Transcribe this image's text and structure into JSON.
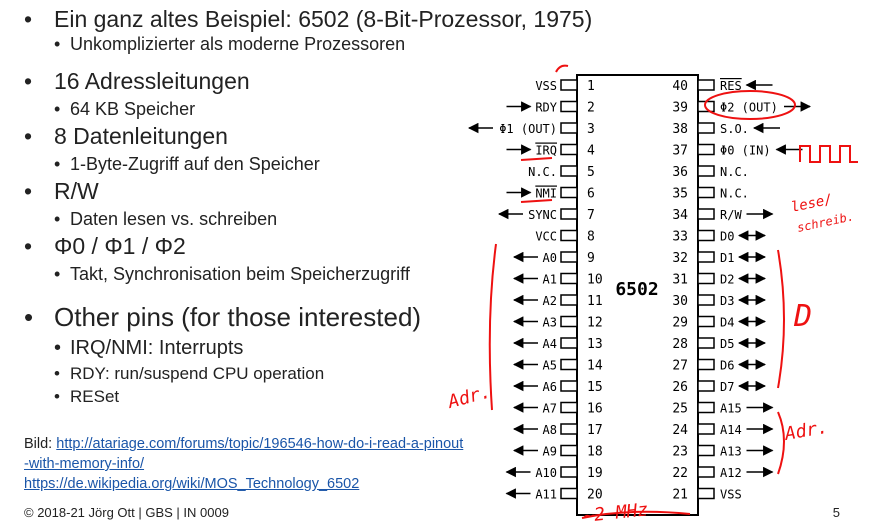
{
  "bullets": [
    {
      "text": "Ein ganz altes Beispiel: 6502 (8-Bit-Prozessor, 1975)",
      "subs": [
        "Unkomplizierter als moderne Prozessoren"
      ]
    },
    {
      "text": "16 Adressleitungen",
      "subs": [
        "64 KB Speicher"
      ]
    },
    {
      "text": "8 Datenleitungen",
      "subs": [
        "1-Byte-Zugriff auf den Speicher"
      ]
    },
    {
      "text": "R/W",
      "subs": [
        "Daten lesen vs. schreiben"
      ]
    },
    {
      "text": "Φ0 / Φ1 / Φ2",
      "subs": [
        "Takt, Synchronisation beim Speicherzugriff"
      ]
    },
    {
      "text": "Other pins (for those interested)",
      "subs": [
        "IRQ/NMI: Interrupts",
        "RDY: run/suspend CPU operation",
        "RESet"
      ]
    }
  ],
  "citation": {
    "prefix": "Bild: ",
    "link1": "http://atariage.com/forums/topic/196546-how-do-i-read-a-pinout-with-memory-info/",
    "link2": "https://de.wikipedia.org/wiki/MOS_Technology_6502"
  },
  "footer": "© 2018-21 Jörg Ott | GBS | IN 0009",
  "page_number": "5",
  "chip": {
    "name": "6502",
    "left_pins": [
      {
        "n": "1",
        "label": "VSS"
      },
      {
        "n": "2",
        "label": "RDY"
      },
      {
        "n": "3",
        "label": "Φ1 (OUT)"
      },
      {
        "n": "4",
        "label": "IRQ"
      },
      {
        "n": "5",
        "label": "N.C."
      },
      {
        "n": "6",
        "label": "NMI"
      },
      {
        "n": "7",
        "label": "SYNC"
      },
      {
        "n": "8",
        "label": "VCC"
      },
      {
        "n": "9",
        "label": "A0"
      },
      {
        "n": "10",
        "label": "A1"
      },
      {
        "n": "11",
        "label": "A2"
      },
      {
        "n": "12",
        "label": "A3"
      },
      {
        "n": "13",
        "label": "A4"
      },
      {
        "n": "14",
        "label": "A5"
      },
      {
        "n": "15",
        "label": "A6"
      },
      {
        "n": "16",
        "label": "A7"
      },
      {
        "n": "17",
        "label": "A8"
      },
      {
        "n": "18",
        "label": "A9"
      },
      {
        "n": "19",
        "label": "A10"
      },
      {
        "n": "20",
        "label": "A11"
      }
    ],
    "right_pins": [
      {
        "n": "40",
        "label": "RES"
      },
      {
        "n": "39",
        "label": "Φ2 (OUT)"
      },
      {
        "n": "38",
        "label": "S.O."
      },
      {
        "n": "37",
        "label": "Φ0 (IN)"
      },
      {
        "n": "36",
        "label": "N.C."
      },
      {
        "n": "35",
        "label": "N.C."
      },
      {
        "n": "34",
        "label": "R/W"
      },
      {
        "n": "33",
        "label": "D0"
      },
      {
        "n": "32",
        "label": "D1"
      },
      {
        "n": "31",
        "label": "D2"
      },
      {
        "n": "30",
        "label": "D3"
      },
      {
        "n": "29",
        "label": "D4"
      },
      {
        "n": "28",
        "label": "D5"
      },
      {
        "n": "27",
        "label": "D6"
      },
      {
        "n": "26",
        "label": "D7"
      },
      {
        "n": "25",
        "label": "A15"
      },
      {
        "n": "24",
        "label": "A14"
      },
      {
        "n": "23",
        "label": "A13"
      },
      {
        "n": "22",
        "label": "A12"
      },
      {
        "n": "21",
        "label": "VSS"
      }
    ]
  },
  "annotations": {
    "lese": "lese/",
    "schreib": "schreib.",
    "data": "D",
    "addr_left": "Adr.",
    "addr_right": "Adr.",
    "clock": "~2 MHz"
  }
}
